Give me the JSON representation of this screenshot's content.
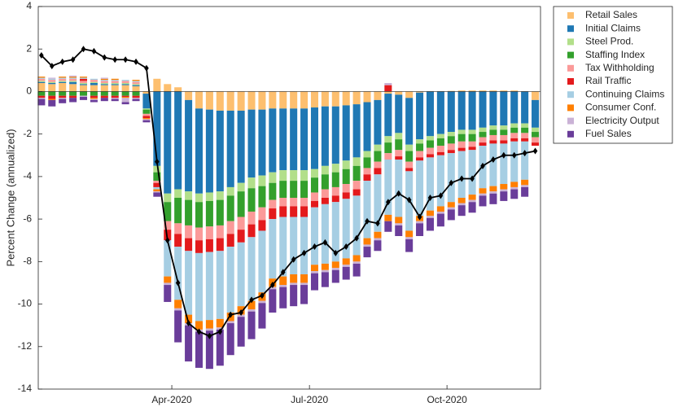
{
  "chart_data": {
    "type": "stacked-bar-line",
    "y_label": "Percent Change (annualized)",
    "categories": [
      null,
      null,
      null,
      null,
      null,
      null,
      null,
      null,
      null,
      null,
      null,
      null,
      null,
      null,
      null,
      null,
      null,
      null,
      null,
      null,
      null,
      null,
      null,
      null,
      null,
      null,
      null,
      null,
      null,
      null,
      null,
      null,
      null,
      null,
      null,
      null,
      null,
      null,
      null,
      null,
      null,
      null,
      null,
      null,
      null,
      null,
      null,
      null
    ],
    "xlim": [
      -0.3,
      47.5
    ],
    "xticks": [
      {
        "value": 12.41,
        "label": "Apr-2020"
      },
      {
        "value": 25.51,
        "label": "Jul-2020"
      },
      {
        "value": 38.6,
        "label": "Oct-2020"
      }
    ],
    "ylim": [
      -14,
      4
    ],
    "yticks": [
      4,
      2,
      0,
      -2,
      -4,
      -6,
      -8,
      -10,
      -12,
      -14
    ],
    "grid": false,
    "legend": "outside-top-right",
    "series": [
      {
        "name": "Retail Sales",
        "color": "#fdbf6f",
        "values": [
          0.4,
          0.35,
          0.4,
          0.35,
          0.3,
          0.3,
          0.3,
          0.3,
          0.3,
          0.25,
          -0.1,
          0.6,
          0.35,
          0.2,
          -0.4,
          -0.8,
          -0.85,
          -0.9,
          -0.9,
          -0.9,
          -0.85,
          -0.85,
          -0.8,
          -0.8,
          -0.8,
          -0.8,
          -0.75,
          -0.7,
          -0.7,
          -0.65,
          -0.6,
          -0.5,
          -0.4,
          -0.1,
          -0.15,
          -0.3,
          -0.05,
          0.02,
          0.02,
          0.03,
          0.05,
          0.05,
          0.05,
          0.05,
          0.05,
          0.05,
          0.02,
          -0.4
        ]
      },
      {
        "name": "Initial Claims",
        "color": "#1f78b4",
        "values": [
          0.05,
          0.05,
          0.05,
          0.1,
          0.05,
          0.1,
          0.05,
          0.05,
          0.05,
          0.05,
          -0.7,
          -3.5,
          -4.8,
          -4.6,
          -4.3,
          -4.0,
          -3.9,
          -3.8,
          -3.6,
          -3.4,
          -3.2,
          -3.1,
          -3.0,
          -2.9,
          -2.9,
          -2.9,
          -2.9,
          -2.8,
          -2.7,
          -2.6,
          -2.5,
          -2.3,
          -2.1,
          -2.0,
          -1.8,
          -2.2,
          -2.2,
          -2.1,
          -2.0,
          -1.9,
          -1.8,
          -1.8,
          -1.7,
          -1.6,
          -1.6,
          -1.5,
          -1.5,
          -1.3
        ]
      },
      {
        "name": "Steel Prod.",
        "color": "#b2df8a",
        "values": [
          0.05,
          0.05,
          0.05,
          0.05,
          0.05,
          0.05,
          0.05,
          0.05,
          0.05,
          0.05,
          -0.05,
          -0.3,
          -0.4,
          -0.4,
          -0.4,
          -0.4,
          -0.4,
          -0.4,
          -0.4,
          -0.4,
          -0.5,
          -0.5,
          -0.5,
          -0.5,
          -0.5,
          -0.5,
          -0.4,
          -0.4,
          -0.4,
          -0.4,
          -0.4,
          -0.3,
          -0.3,
          -0.3,
          -0.3,
          -0.3,
          -0.2,
          -0.2,
          -0.2,
          -0.2,
          -0.2,
          -0.2,
          -0.2,
          -0.2,
          -0.2,
          -0.2,
          -0.2,
          -0.2
        ]
      },
      {
        "name": "Staffing Index",
        "color": "#33a02c",
        "values": [
          -0.2,
          -0.2,
          -0.2,
          -0.2,
          -0.2,
          -0.2,
          -0.2,
          -0.2,
          -0.2,
          -0.2,
          -0.2,
          -0.4,
          -0.9,
          -1.2,
          -1.2,
          -1.2,
          -1.2,
          -1.2,
          -1.2,
          -1.2,
          -1.1,
          -1.0,
          -0.8,
          -0.8,
          -0.8,
          -0.8,
          -0.7,
          -0.7,
          -0.7,
          -0.7,
          -0.7,
          -0.5,
          -0.5,
          -0.5,
          -0.5,
          -0.5,
          -0.35,
          -0.35,
          -0.35,
          -0.35,
          -0.35,
          -0.35,
          -0.25,
          -0.25,
          -0.25,
          -0.25,
          -0.25,
          -0.25
        ]
      },
      {
        "name": "Tax Withholding",
        "color": "#fb9a99",
        "values": [
          0.1,
          0.1,
          0.1,
          0.1,
          0.1,
          0.1,
          0.1,
          0.1,
          0.1,
          0.1,
          -0.1,
          -0.1,
          -0.4,
          -0.5,
          -0.6,
          -0.6,
          -0.6,
          -0.6,
          -0.6,
          -0.6,
          -0.6,
          -0.6,
          -0.4,
          -0.4,
          -0.4,
          -0.4,
          -0.4,
          -0.4,
          -0.4,
          -0.4,
          -0.4,
          -0.3,
          -0.3,
          -0.3,
          -0.3,
          -0.3,
          -0.3,
          -0.3,
          -0.3,
          -0.3,
          -0.3,
          -0.25,
          -0.25,
          -0.25,
          -0.25,
          -0.25,
          -0.25,
          -0.25
        ]
      },
      {
        "name": "Rail Traffic",
        "color": "#e31a1c",
        "values": [
          -0.1,
          -0.15,
          -0.1,
          -0.1,
          0.1,
          -0.1,
          -0.1,
          -0.1,
          -0.05,
          -0.1,
          -0.1,
          -0.2,
          -0.5,
          -0.6,
          -0.6,
          -0.6,
          -0.6,
          -0.6,
          -0.6,
          -0.6,
          -0.6,
          -0.5,
          -0.5,
          -0.5,
          -0.5,
          -0.5,
          -0.3,
          -0.3,
          -0.3,
          -0.3,
          -0.3,
          -0.3,
          -0.3,
          0.3,
          -0.15,
          -0.15,
          -0.15,
          -0.15,
          -0.15,
          -0.15,
          -0.15,
          -0.15,
          -0.15,
          -0.15,
          -0.15,
          -0.15,
          -0.15,
          -0.15
        ]
      },
      {
        "name": "Continuing Claims",
        "color": "#a6cee3",
        "values": [
          0.05,
          0.05,
          0.05,
          0.05,
          0.05,
          0.05,
          0.05,
          0.05,
          0.05,
          0.05,
          0,
          -0.1,
          -1.7,
          -2.5,
          -3.0,
          -3.2,
          -3.2,
          -3.2,
          -3.1,
          -3.0,
          -3.0,
          -2.9,
          -2.8,
          -2.8,
          -2.7,
          -2.7,
          -2.7,
          -2.8,
          -2.8,
          -2.8,
          -2.8,
          -2.7,
          -2.7,
          -2.6,
          -2.7,
          -2.8,
          -2.6,
          -2.5,
          -2.4,
          -2.3,
          -2.2,
          -2.1,
          -2.0,
          -2.0,
          -1.9,
          -1.9,
          -1.8,
          0
        ]
      },
      {
        "name": "Consumer Conf.",
        "color": "#ff7f00",
        "values": [
          0.05,
          -0.05,
          0.05,
          0.05,
          0.05,
          -0.05,
          0.05,
          0.05,
          -0.05,
          0.05,
          -0.05,
          -0.1,
          -0.3,
          -0.4,
          -0.4,
          -0.4,
          -0.4,
          -0.4,
          -0.4,
          -0.4,
          -0.4,
          -0.4,
          -0.4,
          -0.4,
          -0.4,
          -0.4,
          -0.3,
          -0.3,
          -0.3,
          -0.3,
          -0.3,
          -0.3,
          -0.3,
          -0.3,
          -0.3,
          -0.3,
          -0.25,
          -0.25,
          -0.25,
          -0.25,
          -0.25,
          -0.25,
          -0.25,
          -0.25,
          -0.25,
          -0.25,
          -0.25,
          0
        ]
      },
      {
        "name": "Electricity Output",
        "color": "#cab2d6",
        "values": [
          -0.05,
          0.05,
          -0.05,
          0.05,
          -0.05,
          -0.05,
          0.05,
          -0.05,
          -0.2,
          -0.05,
          -0.05,
          -0.05,
          -0.1,
          -0.1,
          -0.1,
          -0.1,
          -0.1,
          -0.1,
          -0.1,
          -0.1,
          -0.1,
          -0.1,
          -0.1,
          -0.1,
          -0.1,
          -0.1,
          -0.1,
          -0.1,
          -0.1,
          -0.1,
          -0.1,
          -0.1,
          -0.1,
          0.1,
          -0.1,
          -0.1,
          -0.1,
          -0.1,
          -0.1,
          -0.1,
          -0.1,
          -0.1,
          -0.1,
          -0.1,
          -0.1,
          -0.1,
          -0.1,
          0
        ]
      },
      {
        "name": "Fuel Sales",
        "color": "#6a3d9a",
        "values": [
          -0.3,
          -0.3,
          -0.2,
          -0.2,
          -0.15,
          -0.1,
          -0.15,
          -0.1,
          -0.1,
          -0.1,
          -0.1,
          -0.2,
          -0.8,
          -1.5,
          -1.7,
          -1.7,
          -1.8,
          -1.7,
          -1.5,
          -1.4,
          -1.3,
          -1.2,
          -1.1,
          -1.0,
          -1.0,
          -0.9,
          -0.8,
          -0.7,
          -0.6,
          -0.6,
          -0.6,
          -0.5,
          -0.5,
          -0.5,
          -0.5,
          -0.6,
          -0.6,
          -0.6,
          -0.6,
          -0.5,
          -0.5,
          -0.5,
          -0.5,
          -0.5,
          -0.45,
          -0.45,
          -0.45,
          0
        ]
      }
    ],
    "line": {
      "color": "#000000",
      "values": [
        1.7,
        1.2,
        1.4,
        1.5,
        2.0,
        1.9,
        1.6,
        1.5,
        1.5,
        1.4,
        1.1,
        -3.3,
        -7.0,
        -9.0,
        -10.9,
        -11.3,
        -11.5,
        -11.3,
        -10.5,
        -10.4,
        -9.8,
        -9.6,
        -9.1,
        -8.5,
        -7.9,
        -7.6,
        -7.3,
        -7.1,
        -7.6,
        -7.3,
        -6.9,
        -6.1,
        -6.2,
        -5.2,
        -4.8,
        -5.1,
        -5.9,
        -5.0,
        -4.9,
        -4.3,
        -4.1,
        -4.1,
        -3.5,
        -3.2,
        -3.0,
        -3.0,
        -2.9,
        -2.8
      ]
    }
  }
}
